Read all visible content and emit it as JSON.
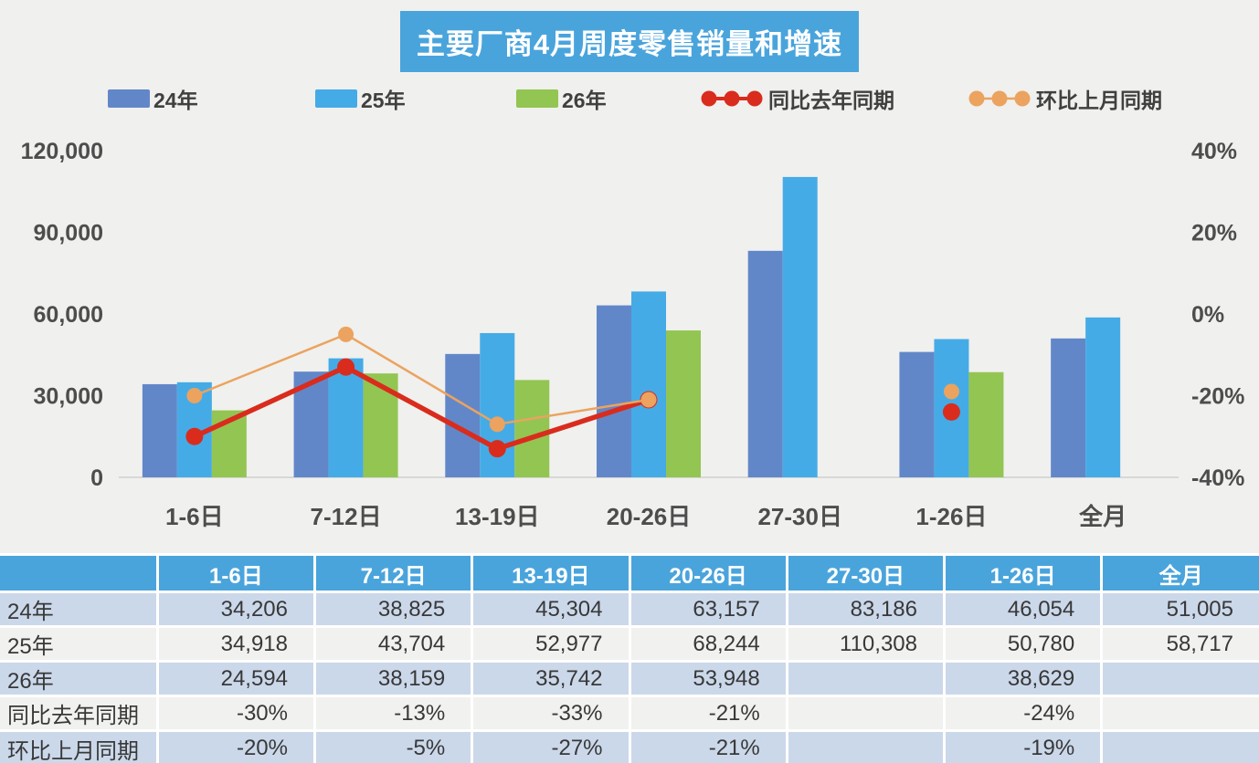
{
  "title": "主要厂商4月周度零售销量和增速",
  "legend": [
    {
      "label": "24年",
      "type": "bar",
      "color": "#6287c9"
    },
    {
      "label": "25年",
      "type": "bar",
      "color": "#45abe6"
    },
    {
      "label": "26年",
      "type": "bar",
      "color": "#93c552"
    },
    {
      "label": "同比去年同期",
      "type": "line",
      "color": "#d92c1d"
    },
    {
      "label": "环比上月同期",
      "type": "line",
      "color": "#eba35f"
    }
  ],
  "chart_data": {
    "type": "bar+line",
    "title": "主要厂商4月周度零售销量和增速",
    "categories": [
      "1-6日",
      "7-12日",
      "13-19日",
      "20-26日",
      "27-30日",
      "1-26日",
      "全月"
    ],
    "bar_series": [
      {
        "name": "24年",
        "color": "#6287c9",
        "values": [
          34206,
          38825,
          45304,
          63157,
          83186,
          46054,
          51005
        ]
      },
      {
        "name": "25年",
        "color": "#45abe6",
        "values": [
          34918,
          43704,
          52977,
          68244,
          110308,
          50780,
          58717
        ]
      },
      {
        "name": "26年",
        "color": "#93c552",
        "values": [
          24594,
          38159,
          35742,
          53948,
          null,
          38629,
          null
        ]
      }
    ],
    "line_series": [
      {
        "name": "同比去年同期",
        "color": "#d92c1d",
        "values_pct": [
          -30,
          -13,
          -33,
          -21,
          null,
          -24,
          null
        ]
      },
      {
        "name": "环比上月同期",
        "color": "#eba35f",
        "values_pct": [
          -20,
          -5,
          -27,
          -21,
          null,
          -19,
          null
        ]
      }
    ],
    "left_axis": {
      "label": "",
      "min": 0,
      "max": 120000,
      "ticks": [
        "0",
        "30,000",
        "60,000",
        "90,000",
        "120,000"
      ]
    },
    "right_axis": {
      "label": "",
      "min": -40,
      "max": 40,
      "ticks": [
        "-40%",
        "-20%",
        "0%",
        "20%",
        "40%"
      ]
    },
    "grid": false,
    "legend_position": "top"
  },
  "table": {
    "header": [
      "",
      "1-6日",
      "7-12日",
      "13-19日",
      "20-26日",
      "27-30日",
      "1-26日",
      "全月"
    ],
    "rows": [
      {
        "label": "24年",
        "cells": [
          "34,206",
          "38,825",
          "45,304",
          "63,157",
          "83,186",
          "46,054",
          "51,005"
        ]
      },
      {
        "label": "25年",
        "cells": [
          "34,918",
          "43,704",
          "52,977",
          "68,244",
          "110,308",
          "50,780",
          "58,717"
        ]
      },
      {
        "label": "26年",
        "cells": [
          "24,594",
          "38,159",
          "35,742",
          "53,948",
          "",
          "38,629",
          ""
        ]
      },
      {
        "label": "同比去年同期",
        "cells": [
          "-30%",
          "-13%",
          "-33%",
          "-21%",
          "",
          "-24%",
          ""
        ]
      },
      {
        "label": "环比上月同期",
        "cells": [
          "-20%",
          "-5%",
          "-27%",
          "-21%",
          "",
          "-19%",
          ""
        ]
      }
    ]
  },
  "colors": {
    "background": "#f0f0ee",
    "header_blue": "#4aa4dc",
    "row_alt_blue": "#cbd8ea",
    "row_alt_white": "#f1f1ef",
    "axis_text": "#4d4d4d",
    "baseline": "#d8d8d6"
  }
}
